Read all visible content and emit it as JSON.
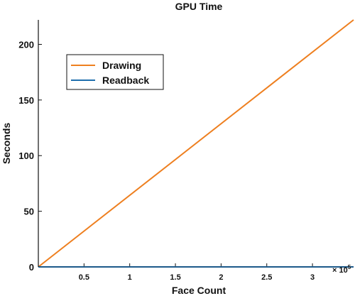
{
  "chart_data": {
    "type": "line",
    "title": "GPU Time",
    "xlabel": "Face Count",
    "ylabel": "Seconds",
    "x_multiplier_label": "× 10",
    "x_multiplier_exponent": "5",
    "xlim": [
      0,
      3.45
    ],
    "ylim": [
      0,
      222
    ],
    "x_ticks": [
      0.5,
      1,
      1.5,
      2,
      2.5,
      3
    ],
    "x_tick_labels": [
      "0.5",
      "1",
      "1.5",
      "2",
      "2.5",
      "3"
    ],
    "y_ticks": [
      0,
      50,
      100,
      150,
      200
    ],
    "y_tick_labels": [
      "0",
      "50",
      "100",
      "150",
      "200"
    ],
    "grid": false,
    "legend_position": "top-left",
    "series": [
      {
        "name": "Drawing",
        "color": "#EE7F1F",
        "x": [
          0,
          3.45
        ],
        "y": [
          0,
          222
        ]
      },
      {
        "name": "Readback",
        "color": "#1F6FAE",
        "x": [
          0,
          3.45
        ],
        "y": [
          0,
          0
        ]
      }
    ]
  }
}
